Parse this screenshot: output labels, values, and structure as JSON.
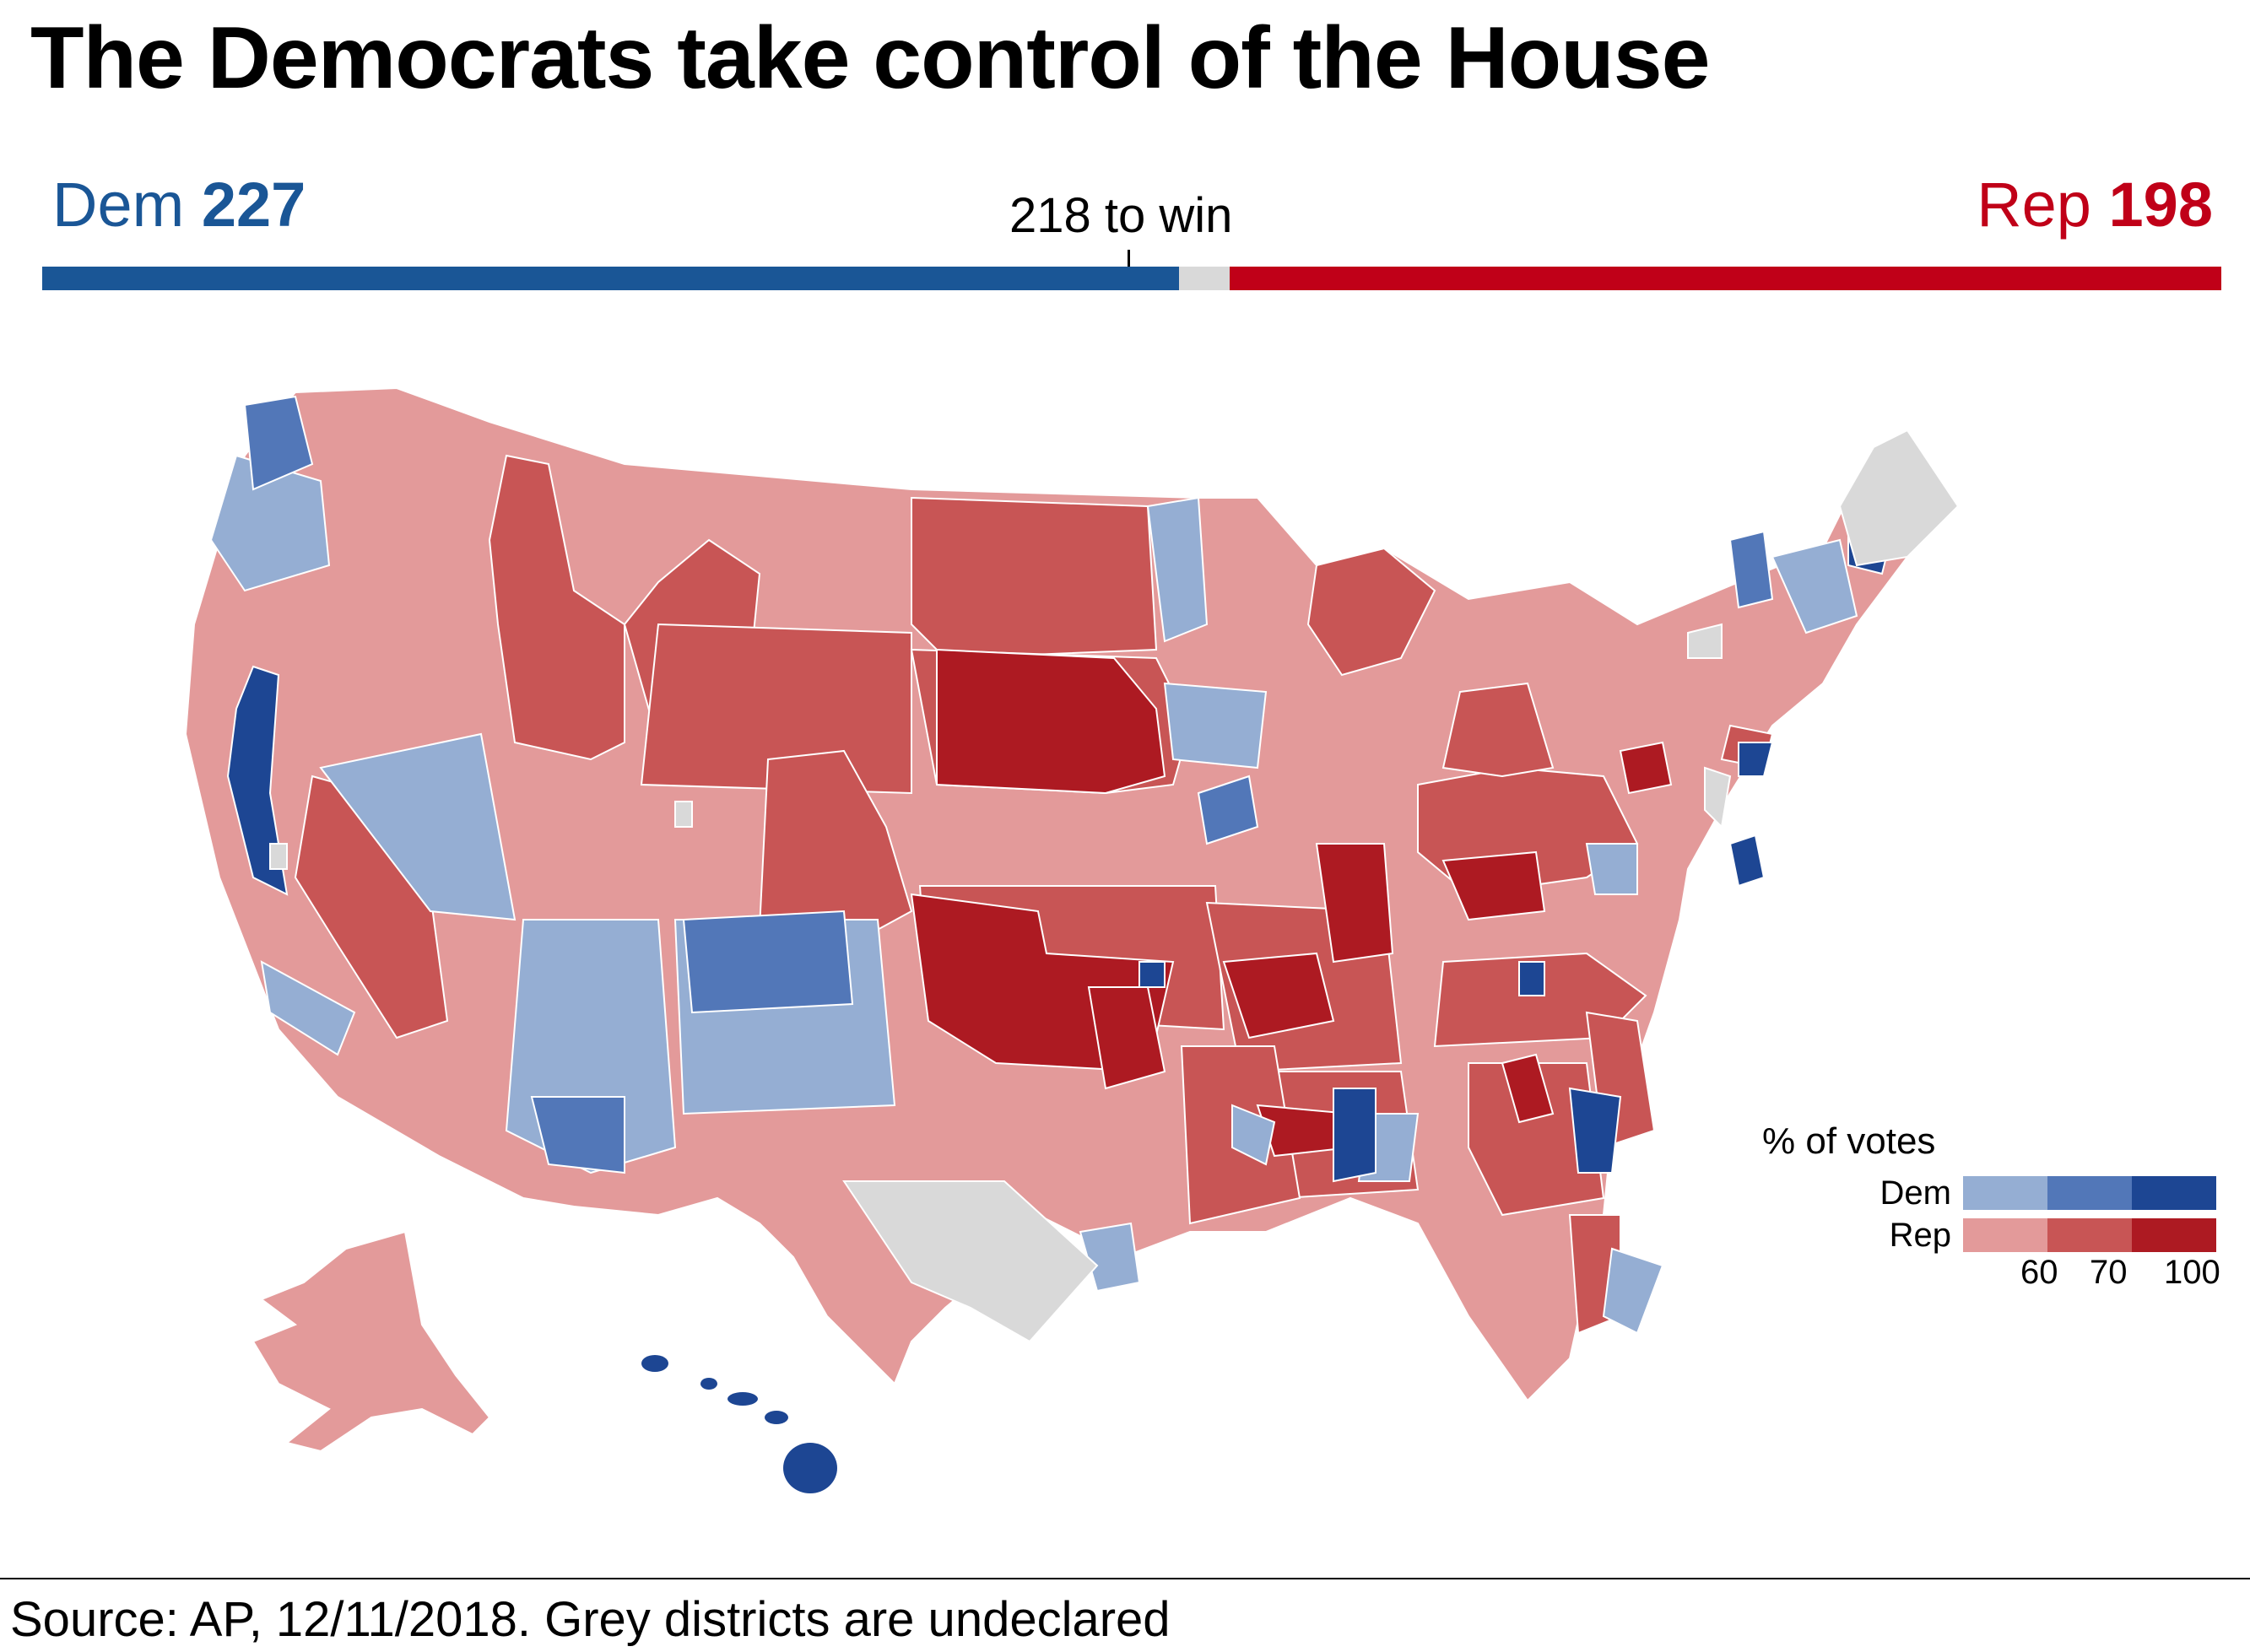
{
  "title": "The Democrats take control of the House",
  "seats": {
    "dem_label": "Dem",
    "dem_count": "227",
    "rep_label": "Rep",
    "rep_count": "198",
    "threshold_label": "218 to win",
    "dem": 227,
    "undeclared": 10,
    "rep": 198,
    "total": 435,
    "to_win": 218
  },
  "legend": {
    "title": "% of votes",
    "dem_label": "Dem",
    "rep_label": "Rep",
    "ticks": [
      "60",
      "70",
      "100"
    ],
    "dem_colors": [
      "#95aed3",
      "#5277b8",
      "#1d4693"
    ],
    "rep_colors": [
      "#e39a9a",
      "#c85555",
      "#ad1a22"
    ]
  },
  "colors": {
    "dem": "#1a5696",
    "rep": "#c00018",
    "undeclared": "#d9d9d9",
    "dem_bar": "#1a5696",
    "rep_bar": "#c00018"
  },
  "source": "Source: AP, 12/11/2018. Grey districts are undeclared"
}
